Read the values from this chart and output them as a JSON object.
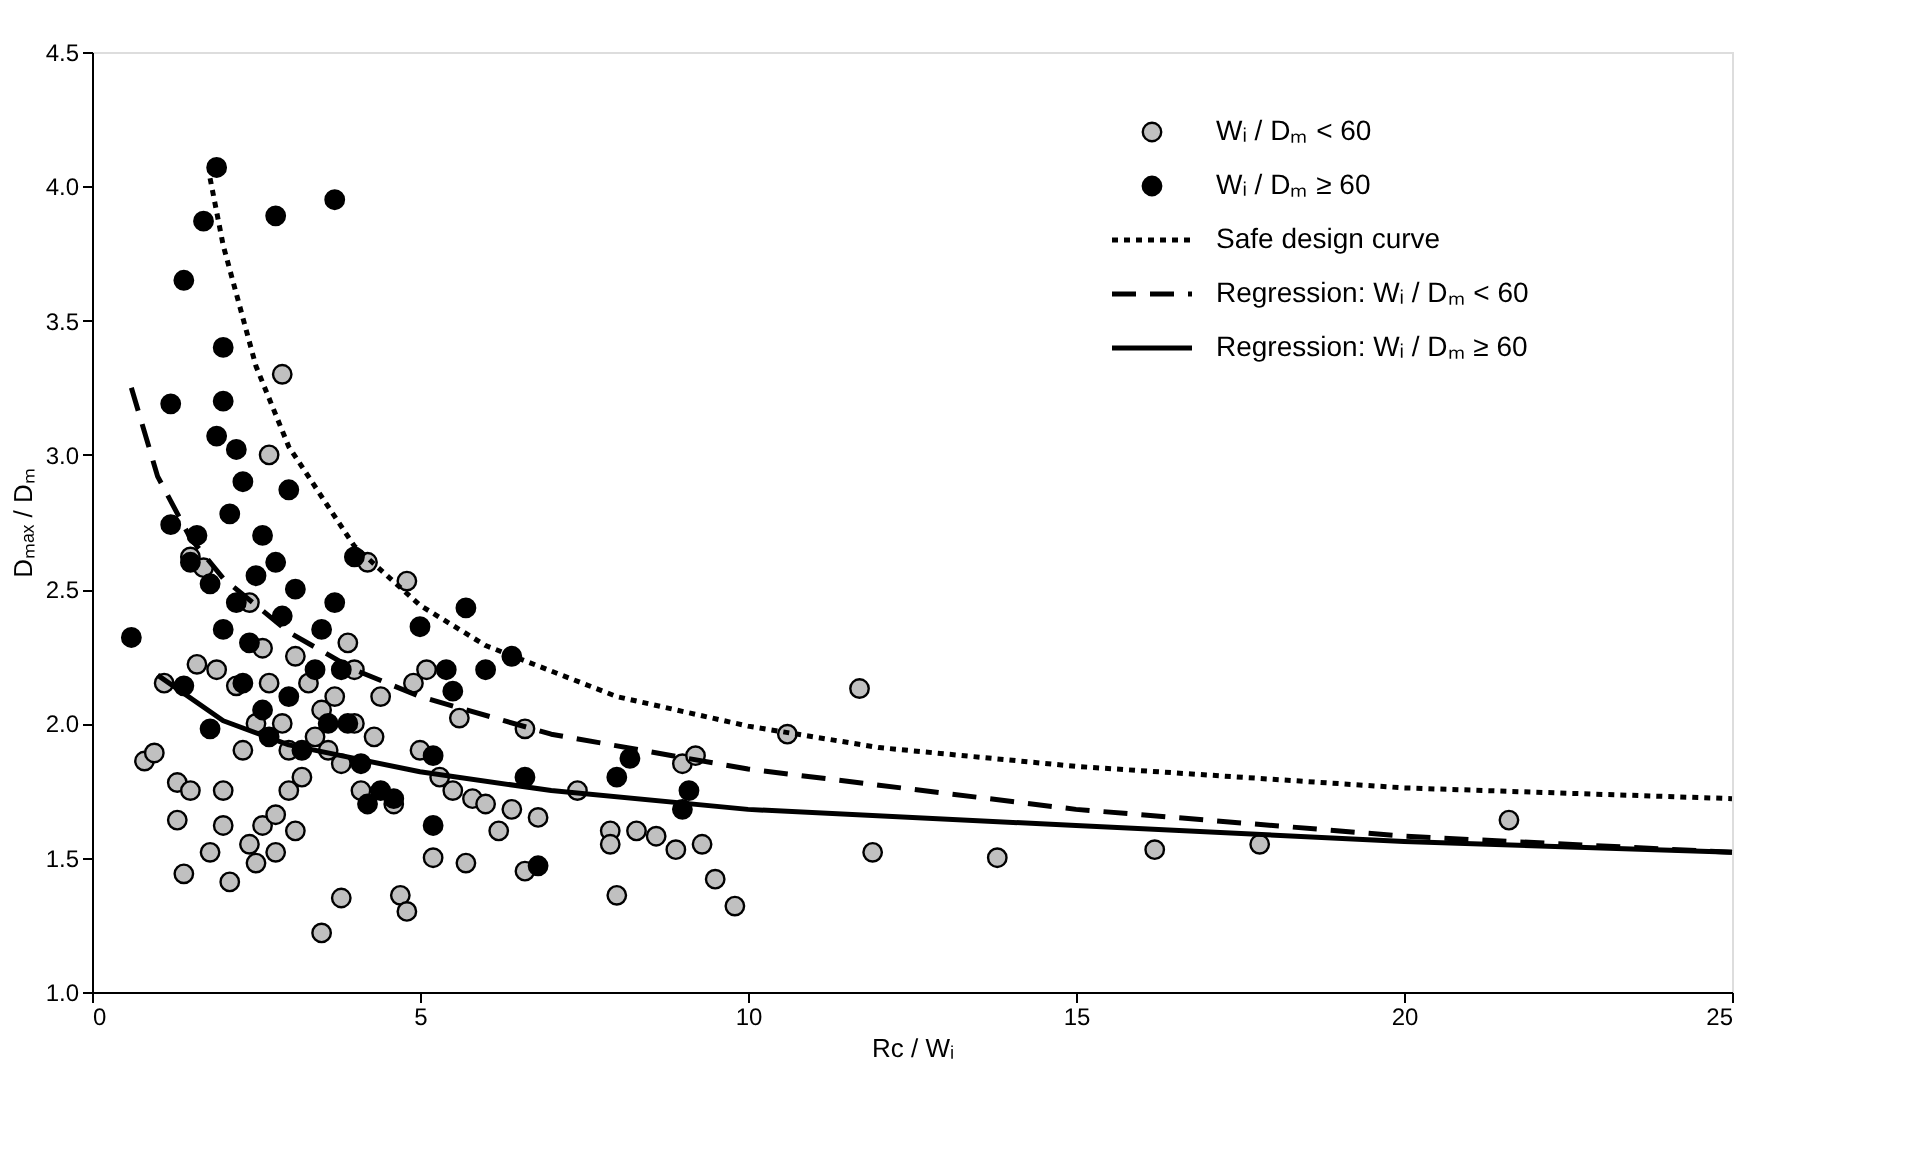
{
  "chart_data": {
    "type": "scatter",
    "xlabel": "Rc / Wᵢ",
    "ylabel": "Dₘₐₓ / Dₘ",
    "xlim": [
      0,
      25
    ],
    "xticks": [
      0,
      5,
      10,
      15,
      20,
      25
    ],
    "ylim": [
      1.0,
      4.5
    ],
    "yticks": [
      {
        "value": 1.0,
        "label": "1.0"
      },
      {
        "value": 1.5,
        "label": "1.5"
      },
      {
        "value": 2.0,
        "label": "2.0"
      },
      {
        "value": 2.5,
        "label": "2.5"
      },
      {
        "value": 3.0,
        "label": "3.0"
      },
      {
        "value": 3.5,
        "label": "3.5"
      },
      {
        "value": 4.0,
        "label": "4.0"
      },
      {
        "value": 4.5,
        "label": "4.5"
      }
    ],
    "grid": false,
    "legend": "top right",
    "series": [
      {
        "name": "Wᵢ / Dₘ < 60",
        "marker": "circle",
        "color": "#c0c0c0",
        "x": [
          0.8,
          0.95,
          1.1,
          1.3,
          1.3,
          1.4,
          1.5,
          1.5,
          1.6,
          1.7,
          1.8,
          1.9,
          2.0,
          2.0,
          2.1,
          2.2,
          2.3,
          2.4,
          2.4,
          2.5,
          2.5,
          2.6,
          2.6,
          2.7,
          2.7,
          2.8,
          2.8,
          2.9,
          2.9,
          3.0,
          3.0,
          3.1,
          3.1,
          3.2,
          3.3,
          3.4,
          3.5,
          3.5,
          3.6,
          3.7,
          3.8,
          3.8,
          3.9,
          4.0,
          4.0,
          4.1,
          4.2,
          4.3,
          4.4,
          4.6,
          4.7,
          4.8,
          4.8,
          4.9,
          5.0,
          5.1,
          5.2,
          5.3,
          5.5,
          5.6,
          5.7,
          5.8,
          6.0,
          6.2,
          6.4,
          6.6,
          6.6,
          6.8,
          7.4,
          7.9,
          7.9,
          8.0,
          8.3,
          8.6,
          8.9,
          9.0,
          9.2,
          9.3,
          9.5,
          9.8,
          10.6,
          11.7,
          11.9,
          13.8,
          16.2,
          17.8,
          21.6
        ],
        "values": [
          1.86,
          1.89,
          2.15,
          1.78,
          1.64,
          1.44,
          1.75,
          2.62,
          2.22,
          2.58,
          1.52,
          2.2,
          1.75,
          1.62,
          1.41,
          2.14,
          1.9,
          1.55,
          2.45,
          2.0,
          1.48,
          1.62,
          2.28,
          3.0,
          2.15,
          1.66,
          1.52,
          3.3,
          2.0,
          1.9,
          1.75,
          1.6,
          2.25,
          1.8,
          2.15,
          1.95,
          1.22,
          2.05,
          1.9,
          2.1,
          1.35,
          1.85,
          2.3,
          2.0,
          2.2,
          1.75,
          2.6,
          1.95,
          2.1,
          1.7,
          1.36,
          2.53,
          1.3,
          2.15,
          1.9,
          2.2,
          1.5,
          1.8,
          1.75,
          2.02,
          1.48,
          1.72,
          1.7,
          1.6,
          1.68,
          1.98,
          1.45,
          1.65,
          1.75,
          1.6,
          1.55,
          1.36,
          1.6,
          1.58,
          1.53,
          1.85,
          1.88,
          1.55,
          1.42,
          1.32,
          1.96,
          2.13,
          1.52,
          1.5,
          1.53,
          1.55,
          1.64
        ]
      },
      {
        "name": "Wᵢ / Dₘ ≥ 60",
        "marker": "circle",
        "color": "#000000",
        "x": [
          0.6,
          1.2,
          1.2,
          1.4,
          1.4,
          1.5,
          1.6,
          1.7,
          1.8,
          1.8,
          1.9,
          1.9,
          2.0,
          2.0,
          2.0,
          2.1,
          2.2,
          2.2,
          2.3,
          2.3,
          2.4,
          2.5,
          2.6,
          2.6,
          2.7,
          2.8,
          2.8,
          2.9,
          3.0,
          3.0,
          3.1,
          3.2,
          3.4,
          3.5,
          3.6,
          3.7,
          3.7,
          3.8,
          3.9,
          4.0,
          4.1,
          4.2,
          4.4,
          4.6,
          5.0,
          5.2,
          5.2,
          5.4,
          5.5,
          5.7,
          6.0,
          6.4,
          6.6,
          6.8,
          8.0,
          8.2,
          9.0,
          9.1
        ],
        "values": [
          2.32,
          2.74,
          3.19,
          3.65,
          2.14,
          2.6,
          2.7,
          3.87,
          1.98,
          2.52,
          4.07,
          3.07,
          3.4,
          3.2,
          2.35,
          2.78,
          3.02,
          2.45,
          2.9,
          2.15,
          2.3,
          2.55,
          2.7,
          2.05,
          1.95,
          3.89,
          2.6,
          2.4,
          2.87,
          2.1,
          2.5,
          1.9,
          2.2,
          2.35,
          2.0,
          3.95,
          2.45,
          2.2,
          2.0,
          2.62,
          1.85,
          1.7,
          1.75,
          1.72,
          2.36,
          1.88,
          1.62,
          2.2,
          2.12,
          2.43,
          2.2,
          2.25,
          1.8,
          1.47,
          1.8,
          1.87,
          1.68,
          1.75
        ]
      },
      {
        "name": "Safe design curve",
        "type": "line",
        "line_style": "dotted",
        "color": "#000000",
        "x": [
          1.8,
          2,
          2.5,
          3,
          4,
          5,
          6,
          8,
          10,
          12,
          15,
          20,
          25
        ],
        "values": [
          4.03,
          3.78,
          3.33,
          3.03,
          2.66,
          2.44,
          2.29,
          2.1,
          1.99,
          1.91,
          1.84,
          1.76,
          1.72
        ]
      },
      {
        "name": "Regression:  Wᵢ / Dₘ < 60",
        "type": "line",
        "line_style": "dashed",
        "color": "#000000",
        "x": [
          0.6,
          1,
          1.5,
          2,
          3,
          4,
          5,
          7,
          10,
          15,
          20,
          25
        ],
        "values": [
          3.25,
          2.92,
          2.69,
          2.54,
          2.34,
          2.2,
          2.1,
          1.96,
          1.83,
          1.68,
          1.58,
          1.52
        ]
      },
      {
        "name": "Regression:  Wᵢ / Dₘ ≥ 60",
        "type": "line",
        "line_style": "solid",
        "color": "#000000",
        "x": [
          1,
          2,
          3,
          5,
          7,
          10,
          15,
          20,
          25
        ],
        "values": [
          2.18,
          2.01,
          1.92,
          1.82,
          1.75,
          1.68,
          1.62,
          1.56,
          1.52
        ]
      }
    ]
  }
}
